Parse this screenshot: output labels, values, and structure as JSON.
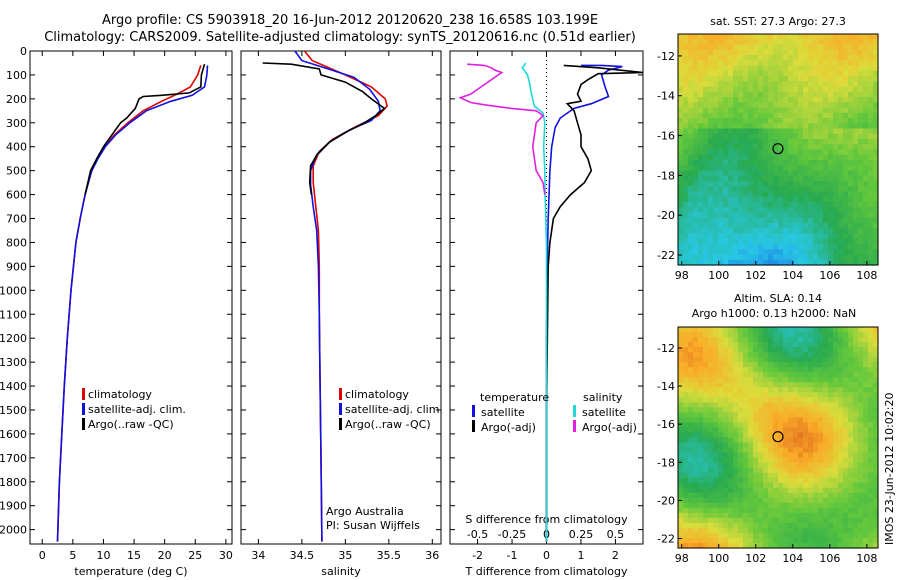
{
  "header": {
    "line1": "Argo profile: CS 5903918_20 16-Jun-2012 20120620_238 16.658S 103.199E",
    "line2": "Climatology: CARS2009. Satellite-adjusted climatology: synTS_20120616.nc (0.51d earlier)"
  },
  "colors": {
    "climatology": "#e00000",
    "satellite": "#1010e0",
    "argo": "#000000",
    "sat_salinity": "#20d8d8",
    "argo_salinity": "#e020e0"
  },
  "chart_data": [
    {
      "type": "line",
      "xlabel": "temperature (deg C)",
      "ylabel": "",
      "xlim": [
        -2,
        31
      ],
      "ylim": [
        2060,
        0
      ],
      "xticks": [
        0,
        5,
        10,
        15,
        20,
        25,
        30
      ],
      "yticks": [
        0,
        100,
        200,
        300,
        400,
        500,
        600,
        700,
        800,
        900,
        1000,
        1100,
        1200,
        1300,
        1400,
        1500,
        1600,
        1700,
        1800,
        1900,
        2000
      ],
      "legend": [
        "climatology",
        "satellite-adj. clim.",
        "Argo(..raw -QC)"
      ],
      "series": [
        {
          "name": "climatology",
          "color": "#e00000",
          "points": [
            [
              25.9,
              60
            ],
            [
              25.4,
              100
            ],
            [
              24.2,
              150
            ],
            [
              22.0,
              180
            ],
            [
              19.5,
              210
            ],
            [
              16.5,
              250
            ],
            [
              14.0,
              300
            ],
            [
              11.8,
              350
            ],
            [
              10.2,
              400
            ],
            [
              9.0,
              450
            ],
            [
              8.0,
              500
            ],
            [
              7.0,
              600
            ],
            [
              6.2,
              700
            ],
            [
              5.5,
              800
            ],
            [
              4.7,
              1000
            ],
            [
              4.1,
              1200
            ],
            [
              3.6,
              1400
            ],
            [
              3.2,
              1600
            ],
            [
              2.8,
              1800
            ],
            [
              2.5,
              2050
            ]
          ]
        },
        {
          "name": "satellite-adj. clim.",
          "color": "#1010e0",
          "points": [
            [
              27.0,
              60
            ],
            [
              26.9,
              100
            ],
            [
              26.5,
              150
            ],
            [
              24.5,
              185
            ],
            [
              21.0,
              210
            ],
            [
              17.0,
              250
            ],
            [
              14.3,
              300
            ],
            [
              12.0,
              350
            ],
            [
              10.3,
              400
            ],
            [
              9.1,
              450
            ],
            [
              8.1,
              500
            ],
            [
              7.0,
              600
            ],
            [
              6.2,
              700
            ],
            [
              5.5,
              800
            ],
            [
              4.7,
              1000
            ],
            [
              4.1,
              1200
            ],
            [
              3.6,
              1400
            ],
            [
              3.2,
              1600
            ],
            [
              2.8,
              1800
            ],
            [
              2.5,
              2050
            ]
          ]
        },
        {
          "name": "Argo(..raw -QC)",
          "color": "#000000",
          "points": [
            [
              26.5,
              55
            ],
            [
              26.0,
              100
            ],
            [
              25.9,
              150
            ],
            [
              24.0,
              175
            ],
            [
              19.5,
              185
            ],
            [
              16.5,
              190
            ],
            [
              15.8,
              200
            ],
            [
              15.2,
              240
            ],
            [
              14.5,
              260
            ],
            [
              13.8,
              280
            ],
            [
              12.8,
              300
            ],
            [
              11.4,
              350
            ],
            [
              10.0,
              400
            ],
            [
              8.9,
              450
            ],
            [
              7.9,
              500
            ],
            [
              7.0,
              600
            ]
          ]
        }
      ]
    },
    {
      "type": "line",
      "xlabel": "salinity",
      "ylabel": "",
      "xlim": [
        33.8,
        36.1
      ],
      "ylim": [
        2060,
        0
      ],
      "xticks": [
        34,
        34.5,
        35,
        35.5,
        36
      ],
      "xticklabels": [
        "34",
        "34.5",
        "35",
        "35.5",
        "36"
      ],
      "legend": [
        "climatology",
        "satellite-adj. clim.",
        "Argo(..raw -QC)"
      ],
      "annotation": [
        "Argo Australia",
        "PI: Susan Wijffels"
      ],
      "series": [
        {
          "name": "climatology",
          "color": "#e00000",
          "points": [
            [
              34.53,
              0
            ],
            [
              34.62,
              40
            ],
            [
              35.0,
              100
            ],
            [
              35.3,
              150
            ],
            [
              35.46,
              200
            ],
            [
              35.48,
              230
            ],
            [
              35.38,
              270
            ],
            [
              35.1,
              320
            ],
            [
              34.85,
              370
            ],
            [
              34.7,
              420
            ],
            [
              34.63,
              480
            ],
            [
              34.63,
              550
            ],
            [
              34.66,
              650
            ],
            [
              34.69,
              750
            ],
            [
              34.7,
              900
            ],
            [
              34.7,
              1100
            ],
            [
              34.71,
              1400
            ],
            [
              34.72,
              1700
            ],
            [
              34.73,
              2050
            ]
          ]
        },
        {
          "name": "satellite-adj. clim.",
          "color": "#1010e0",
          "points": [
            [
              34.42,
              0
            ],
            [
              34.5,
              40
            ],
            [
              34.8,
              75
            ],
            [
              35.1,
              110
            ],
            [
              35.28,
              160
            ],
            [
              35.38,
              210
            ],
            [
              35.4,
              250
            ],
            [
              35.3,
              290
            ],
            [
              35.05,
              330
            ],
            [
              34.82,
              380
            ],
            [
              34.66,
              440
            ],
            [
              34.6,
              500
            ],
            [
              34.6,
              560
            ],
            [
              34.63,
              650
            ],
            [
              34.67,
              750
            ],
            [
              34.69,
              900
            ],
            [
              34.7,
              1100
            ],
            [
              34.71,
              1400
            ],
            [
              34.72,
              1700
            ],
            [
              34.73,
              2050
            ]
          ]
        },
        {
          "name": "Argo(..raw -QC)",
          "color": "#000000",
          "points": [
            [
              34.05,
              50
            ],
            [
              34.38,
              55
            ],
            [
              34.7,
              75
            ],
            [
              34.72,
              100
            ],
            [
              35.0,
              130
            ],
            [
              35.2,
              170
            ],
            [
              35.3,
              200
            ],
            [
              35.45,
              240
            ],
            [
              35.35,
              270
            ],
            [
              35.22,
              300
            ],
            [
              35.0,
              340
            ],
            [
              34.82,
              380
            ],
            [
              34.68,
              430
            ],
            [
              34.6,
              480
            ],
            [
              34.59,
              550
            ],
            [
              34.61,
              600
            ]
          ]
        }
      ]
    },
    {
      "type": "line",
      "xlabel": "T difference from climatology",
      "xlabel2": "S difference from climatology",
      "xlim": [
        -2.8,
        2.8
      ],
      "ylim": [
        2060,
        0
      ],
      "xticks": [
        -2,
        -1,
        0,
        1,
        2
      ],
      "top_xticks": [
        -0.5,
        -0.25,
        0,
        0.25,
        0.5
      ],
      "top_xticklabels": [
        "-0.5",
        "-0.25",
        "0",
        "0.25",
        "0.5"
      ],
      "legend_left": {
        "title": "temperature",
        "items": [
          "satellite",
          "Argo(-adj)"
        ]
      },
      "legend_right": {
        "title": "salinity",
        "items": [
          "satellite",
          "Argo(-adj)"
        ]
      },
      "series": [
        {
          "name": "temperature satellite",
          "color": "#1010e0",
          "points": [
            [
              1.0,
              60
            ],
            [
              1.6,
              60
            ],
            [
              2.2,
              65
            ],
            [
              1.8,
              80
            ],
            [
              1.6,
              100
            ],
            [
              1.7,
              150
            ],
            [
              1.8,
              190
            ],
            [
              1.3,
              220
            ],
            [
              0.8,
              240
            ],
            [
              0.4,
              280
            ],
            [
              0.25,
              320
            ],
            [
              0.15,
              400
            ],
            [
              0.1,
              500
            ],
            [
              0.05,
              700
            ],
            [
              0.02,
              900
            ],
            [
              0.0,
              1200
            ],
            [
              0.0,
              2050
            ]
          ]
        },
        {
          "name": "temperature Argo(-adj)",
          "color": "#000000",
          "points": [
            [
              0.5,
              60
            ],
            [
              1.5,
              70
            ],
            [
              2.8,
              90
            ],
            [
              1.5,
              95
            ],
            [
              1.2,
              120
            ],
            [
              1.0,
              140
            ],
            [
              0.9,
              180
            ],
            [
              1.0,
              210
            ],
            [
              0.6,
              220
            ],
            [
              0.8,
              250
            ],
            [
              0.9,
              300
            ],
            [
              1.0,
              350
            ],
            [
              1.0,
              400
            ],
            [
              1.2,
              450
            ],
            [
              1.3,
              500
            ],
            [
              1.1,
              550
            ],
            [
              0.7,
              600
            ],
            [
              0.4,
              650
            ],
            [
              0.2,
              700
            ],
            [
              0.1,
              800
            ],
            [
              0.05,
              900
            ],
            [
              0.0,
              1500
            ],
            [
              0.0,
              2050
            ]
          ]
        },
        {
          "name": "salinity satellite",
          "color": "#20d8d8",
          "points": [
            [
              -0.6,
              50
            ],
            [
              -0.7,
              70
            ],
            [
              -0.55,
              100
            ],
            [
              -0.5,
              130
            ],
            [
              -0.45,
              170
            ],
            [
              -0.4,
              200
            ],
            [
              -0.35,
              230
            ],
            [
              -0.1,
              260
            ],
            [
              -0.05,
              300
            ],
            [
              -0.08,
              400
            ],
            [
              -0.05,
              500
            ],
            [
              -0.04,
              600
            ],
            [
              -0.02,
              700
            ],
            [
              0.0,
              800
            ],
            [
              0.0,
              2050
            ]
          ]
        },
        {
          "name": "salinity Argo(-adj)",
          "color": "#e020e0",
          "points": [
            [
              -2.3,
              55
            ],
            [
              -1.8,
              60
            ],
            [
              -1.6,
              70
            ],
            [
              -1.5,
              80
            ],
            [
              -1.3,
              90
            ],
            [
              -2.2,
              180
            ],
            [
              -2.5,
              195
            ],
            [
              -2.2,
              215
            ],
            [
              -1.8,
              225
            ],
            [
              -1.0,
              240
            ],
            [
              -0.3,
              250
            ],
            [
              -0.1,
              270
            ],
            [
              -0.3,
              300
            ],
            [
              -0.4,
              400
            ],
            [
              -0.3,
              500
            ],
            [
              -0.1,
              550
            ],
            [
              -0.05,
              600
            ]
          ]
        }
      ]
    }
  ],
  "maps": [
    {
      "title": "sat. SST: 27.3 Argo: 27.3",
      "subtitle": "",
      "xticks": [
        98,
        100,
        102,
        104,
        106,
        108
      ],
      "yticks": [
        -12,
        -14,
        -16,
        -18,
        -20,
        -22
      ],
      "marker": {
        "lon": 103.199,
        "lat": -16.658
      }
    },
    {
      "title": "Altim. SLA: 0.14",
      "subtitle": "Argo h1000: 0.13 h2000: NaN",
      "xticks": [
        98,
        100,
        102,
        104,
        106,
        108
      ],
      "yticks": [
        -12,
        -14,
        -16,
        -18,
        -20,
        -22
      ],
      "marker": {
        "lon": 103.199,
        "lat": -16.658
      }
    }
  ],
  "stamp": "IMOS 23-Jun-2012 10:02:20"
}
